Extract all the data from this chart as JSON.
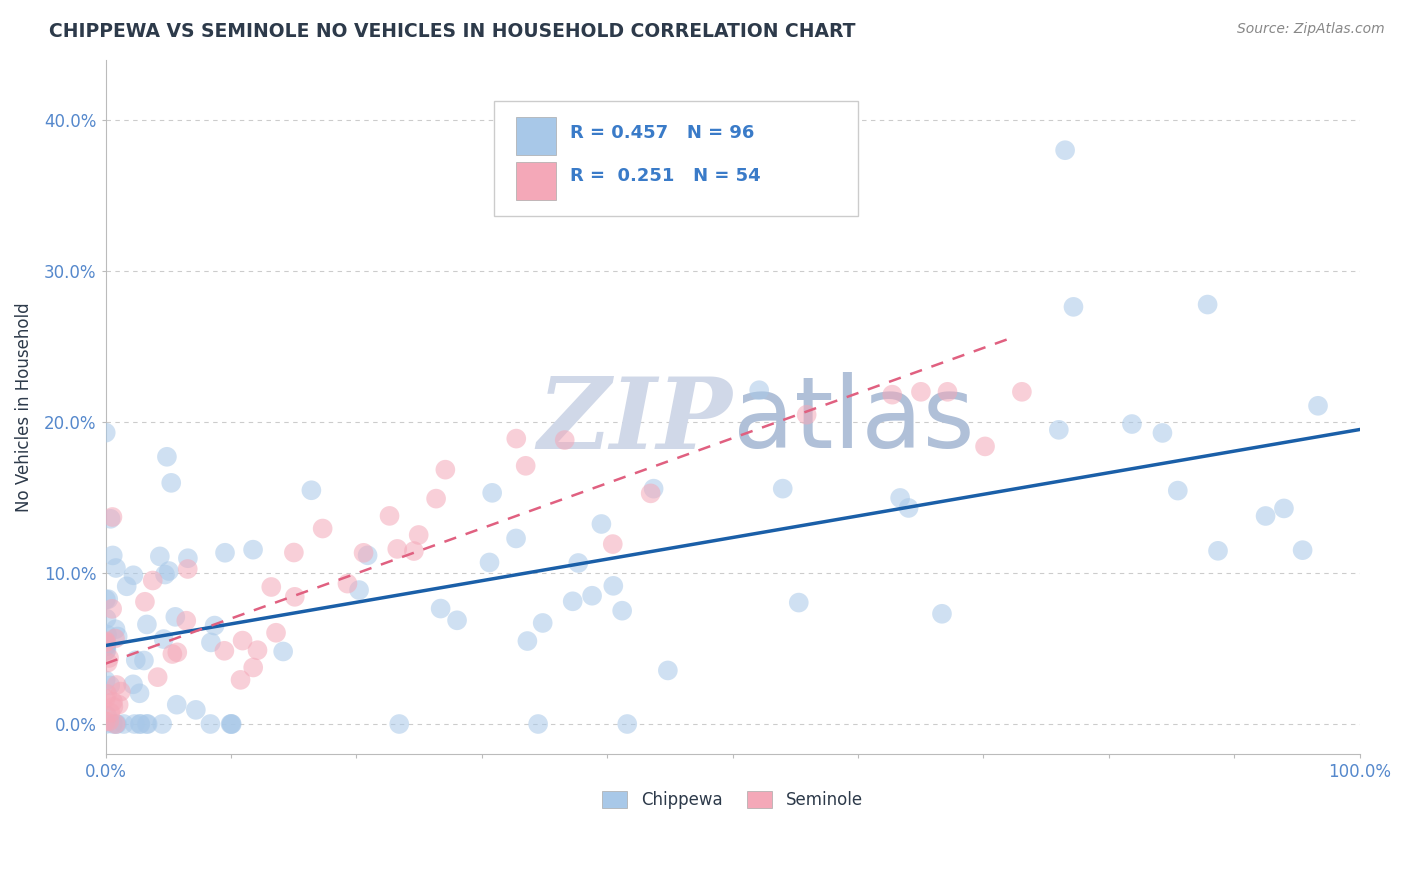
{
  "title": "CHIPPEWA VS SEMINOLE NO VEHICLES IN HOUSEHOLD CORRELATION CHART",
  "source": "Source: ZipAtlas.com",
  "ylabel": "No Vehicles in Household",
  "legend_chippewa": "Chippewa",
  "legend_seminole": "Seminole",
  "R_chippewa": 0.457,
  "N_chippewa": 96,
  "R_seminole": 0.251,
  "N_seminole": 54,
  "color_chippewa": "#a8c8e8",
  "color_seminole": "#f4a8b8",
  "color_chippewa_line": "#1a5fa8",
  "color_seminole_line": "#e06080",
  "color_title": "#2d3a4a",
  "color_source": "#888888",
  "color_legend_text": "#3a7bc8",
  "watermark_color": "#d0d8e8",
  "background_color": "#ffffff",
  "grid_color": "#cccccc",
  "tick_color": "#5588cc",
  "xlim": [
    0.0,
    1.0
  ],
  "ylim": [
    -0.02,
    0.44
  ],
  "yticks": [
    0.0,
    0.1,
    0.2,
    0.3,
    0.4
  ],
  "chip_line_x0": 0.0,
  "chip_line_y0": 0.052,
  "chip_line_x1": 1.0,
  "chip_line_y1": 0.195,
  "semi_line_x0": 0.0,
  "semi_line_y0": 0.04,
  "semi_line_x1": 0.72,
  "semi_line_y1": 0.255
}
